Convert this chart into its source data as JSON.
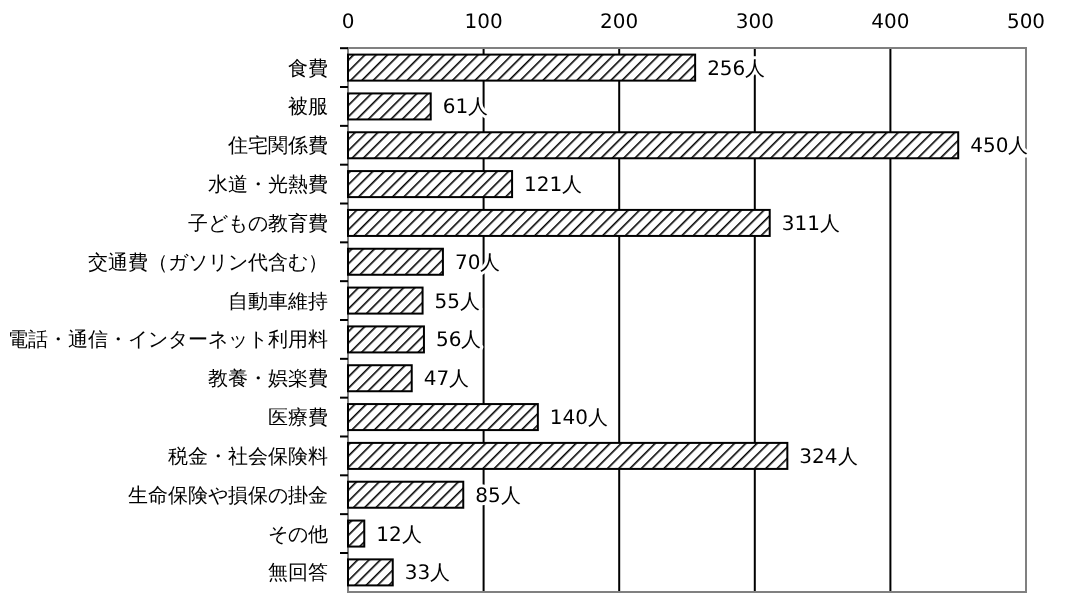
{
  "chart_data": {
    "type": "bar",
    "orientation": "horizontal",
    "categories": [
      "食費",
      "被服",
      "住宅関係費",
      "水道・光熱費",
      "子どもの教育費",
      "交通費（ガソリン代含む）",
      "自動車維持",
      "電話・通信・インターネット利用料",
      "教養・娯楽費",
      "医療費",
      "税金・社会保険料",
      "生命保険や損保の掛金",
      "その他",
      "無回答"
    ],
    "values": [
      256,
      61,
      450,
      121,
      311,
      70,
      55,
      56,
      47,
      140,
      324,
      85,
      12,
      33
    ],
    "value_labels": [
      "256人",
      "61人",
      "450人",
      "121人",
      "311人",
      "70人",
      "55人",
      "56人",
      "47人",
      "140人",
      "324人",
      "85人",
      "12人",
      "33人"
    ],
    "color": "#000000",
    "xlim": [
      0,
      500
    ],
    "xticks": [
      0,
      100,
      200,
      300,
      400,
      500
    ],
    "grid": "x"
  }
}
